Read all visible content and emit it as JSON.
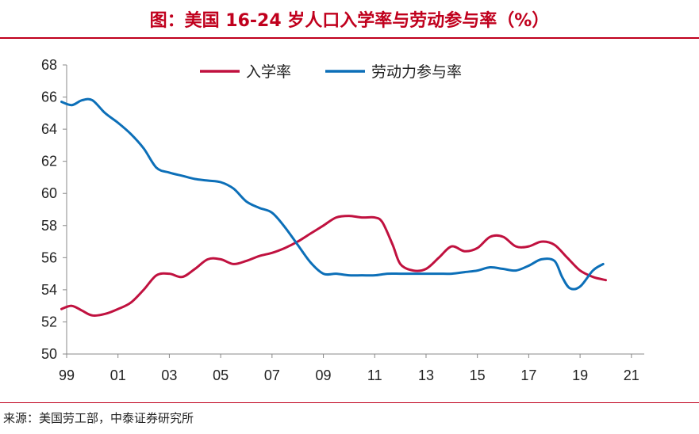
{
  "header": {
    "title": "图：美国 16-24 岁人口入学率与劳动参与率（%）"
  },
  "footer": {
    "source": "来源：美国劳工部，中泰证券研究所"
  },
  "colors": {
    "accent": "#c0001d",
    "series1": "#c0113f",
    "series2": "#0c6fb8"
  },
  "chart_data": {
    "type": "line",
    "title": "图：美国 16-24 岁人口入学率与劳动参与率（%）",
    "xlabel": "",
    "ylabel": "",
    "ylim": [
      50,
      68
    ],
    "yticks": [
      50,
      52,
      54,
      56,
      58,
      60,
      62,
      64,
      66,
      68
    ],
    "xlim": [
      1999,
      2021.5
    ],
    "xticks": [
      1999,
      2001,
      2003,
      2005,
      2007,
      2009,
      2011,
      2013,
      2015,
      2017,
      2019,
      2021
    ],
    "xtick_labels": [
      "99",
      "01",
      "03",
      "05",
      "07",
      "09",
      "11",
      "13",
      "15",
      "17",
      "19",
      "21"
    ],
    "grid": false,
    "legend": "top-center",
    "series": [
      {
        "name": "入学率",
        "color": "#c0113f",
        "points": [
          [
            1998.8,
            52.8
          ],
          [
            1999.2,
            53.0
          ],
          [
            1999.6,
            52.7
          ],
          [
            2000.0,
            52.4
          ],
          [
            2000.5,
            52.5
          ],
          [
            2001.0,
            52.8
          ],
          [
            2001.5,
            53.2
          ],
          [
            2002.0,
            54.0
          ],
          [
            2002.5,
            54.9
          ],
          [
            2003.0,
            55.0
          ],
          [
            2003.5,
            54.8
          ],
          [
            2004.0,
            55.3
          ],
          [
            2004.5,
            55.9
          ],
          [
            2005.0,
            55.9
          ],
          [
            2005.5,
            55.6
          ],
          [
            2006.0,
            55.8
          ],
          [
            2006.5,
            56.1
          ],
          [
            2007.0,
            56.3
          ],
          [
            2007.5,
            56.6
          ],
          [
            2008.0,
            57.0
          ],
          [
            2008.5,
            57.5
          ],
          [
            2009.0,
            58.0
          ],
          [
            2009.5,
            58.5
          ],
          [
            2010.0,
            58.6
          ],
          [
            2010.5,
            58.5
          ],
          [
            2011.0,
            58.5
          ],
          [
            2011.3,
            58.2
          ],
          [
            2011.7,
            56.8
          ],
          [
            2012.0,
            55.6
          ],
          [
            2012.5,
            55.2
          ],
          [
            2013.0,
            55.3
          ],
          [
            2013.5,
            56.0
          ],
          [
            2014.0,
            56.7
          ],
          [
            2014.5,
            56.4
          ],
          [
            2015.0,
            56.6
          ],
          [
            2015.5,
            57.3
          ],
          [
            2016.0,
            57.3
          ],
          [
            2016.5,
            56.7
          ],
          [
            2017.0,
            56.7
          ],
          [
            2017.5,
            57.0
          ],
          [
            2018.0,
            56.8
          ],
          [
            2018.5,
            56.0
          ],
          [
            2019.0,
            55.2
          ],
          [
            2019.5,
            54.8
          ],
          [
            2020.0,
            54.6
          ]
        ]
      },
      {
        "name": "劳动力参与率",
        "color": "#0c6fb8",
        "points": [
          [
            1998.8,
            65.7
          ],
          [
            1999.2,
            65.5
          ],
          [
            1999.6,
            65.8
          ],
          [
            2000.0,
            65.8
          ],
          [
            2000.5,
            65.0
          ],
          [
            2001.0,
            64.4
          ],
          [
            2001.5,
            63.7
          ],
          [
            2002.0,
            62.8
          ],
          [
            2002.5,
            61.6
          ],
          [
            2003.0,
            61.3
          ],
          [
            2003.5,
            61.1
          ],
          [
            2004.0,
            60.9
          ],
          [
            2004.5,
            60.8
          ],
          [
            2005.0,
            60.7
          ],
          [
            2005.5,
            60.3
          ],
          [
            2006.0,
            59.5
          ],
          [
            2006.5,
            59.1
          ],
          [
            2007.0,
            58.8
          ],
          [
            2007.5,
            57.9
          ],
          [
            2008.0,
            56.8
          ],
          [
            2008.5,
            55.7
          ],
          [
            2009.0,
            55.0
          ],
          [
            2009.5,
            55.0
          ],
          [
            2010.0,
            54.9
          ],
          [
            2010.5,
            54.9
          ],
          [
            2011.0,
            54.9
          ],
          [
            2011.5,
            55.0
          ],
          [
            2012.0,
            55.0
          ],
          [
            2012.5,
            55.0
          ],
          [
            2013.0,
            55.0
          ],
          [
            2013.5,
            55.0
          ],
          [
            2014.0,
            55.0
          ],
          [
            2014.5,
            55.1
          ],
          [
            2015.0,
            55.2
          ],
          [
            2015.5,
            55.4
          ],
          [
            2016.0,
            55.3
          ],
          [
            2016.5,
            55.2
          ],
          [
            2017.0,
            55.5
          ],
          [
            2017.5,
            55.9
          ],
          [
            2018.0,
            55.8
          ],
          [
            2018.3,
            54.8
          ],
          [
            2018.6,
            54.1
          ],
          [
            2019.0,
            54.2
          ],
          [
            2019.5,
            55.2
          ],
          [
            2019.9,
            55.6
          ]
        ]
      }
    ]
  }
}
